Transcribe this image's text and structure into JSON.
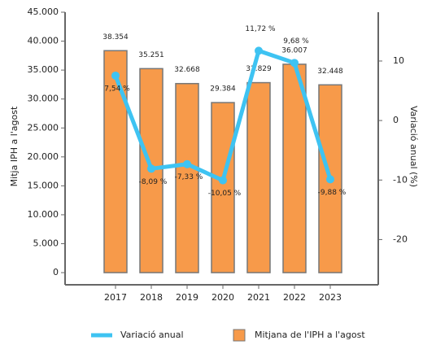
{
  "chart_data": {
    "type": "bar_line",
    "categories": [
      "2017",
      "2018",
      "2019",
      "2020",
      "2021",
      "2022",
      "2023"
    ],
    "ylabel": "Mitja IPH a l'agost",
    "y2label": "Variació anual (%)",
    "series": [
      {
        "name": "Mitjana de l'IPH a l'agost",
        "type": "bar",
        "color": "#f79a4a",
        "values": [
          38354,
          35251,
          32668,
          29384,
          32829,
          36007,
          32448
        ],
        "value_labels": [
          "38.354",
          "35.251",
          "32.668",
          "29.384",
          "32.829",
          "36.007",
          "32.448"
        ]
      },
      {
        "name": "Variació anual",
        "type": "line",
        "axis": "y2",
        "color": "#3ec3f2",
        "values": [
          7.54,
          -8.09,
          -7.33,
          -10.05,
          11.72,
          9.68,
          -9.88
        ],
        "value_labels": [
          "7,54 %",
          "-8,09 %",
          "-7,33 %",
          "-10,05 %",
          "11,72 %",
          "9,68 %",
          "-9,88 %"
        ]
      }
    ],
    "ylim": [
      -2100,
      45000
    ],
    "yticks": [
      0,
      {
        "value": 5000,
        "label": "5.000"
      },
      {
        "value": 10000,
        "label": "10.000"
      },
      {
        "value": 15000,
        "label": "15.000"
      },
      {
        "value": 20000,
        "label": "20.000"
      },
      {
        "value": 25000,
        "label": "25.000"
      },
      {
        "value": 30000,
        "label": "30.000"
      },
      {
        "value": 35000,
        "label": "35.000"
      },
      {
        "value": 40000,
        "label": "40.000"
      },
      {
        "value": 45000,
        "label": "45.000"
      }
    ],
    "y2lim": [
      -27.6,
      18.2
    ],
    "y2ticks": [
      -20,
      -10,
      0,
      10
    ],
    "legend": "bottom"
  }
}
